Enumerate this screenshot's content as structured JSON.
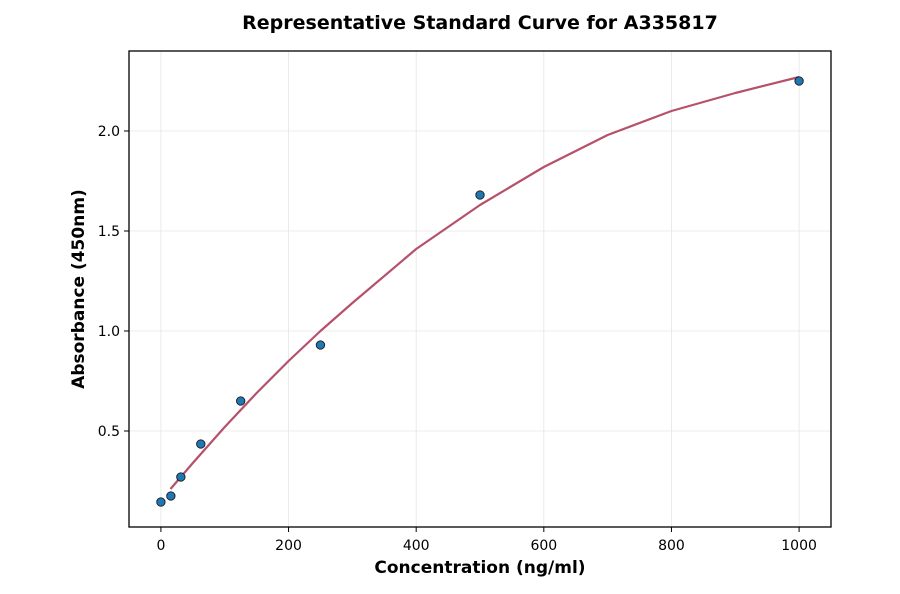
{
  "chart_data": {
    "type": "scatter",
    "title": "Representative Standard Curve for A335817",
    "xlabel": "Concentration (ng/ml)",
    "ylabel": "Absorbance (450nm)",
    "xlim": [
      -50,
      1050
    ],
    "ylim": [
      0.02,
      2.4
    ],
    "xticks": [
      0,
      200,
      400,
      600,
      800,
      1000
    ],
    "xtick_labels": [
      "0",
      "200",
      "400",
      "600",
      "800",
      "1000"
    ],
    "yticks": [
      0.5,
      1.0,
      1.5,
      2.0
    ],
    "ytick_labels": [
      "0.5",
      "1.0",
      "1.5",
      "2.0"
    ],
    "grid": true,
    "series": [
      {
        "type": "scatter",
        "color": "#1f77b4",
        "x": [
          0,
          15.6,
          31.25,
          62.5,
          125,
          250,
          500,
          1000
        ],
        "y": [
          0.145,
          0.175,
          0.27,
          0.435,
          0.65,
          0.93,
          1.68,
          2.25
        ]
      },
      {
        "type": "line",
        "color": "#b5516a",
        "x": [
          15,
          50,
          100,
          150,
          200,
          250,
          300,
          400,
          500,
          600,
          700,
          800,
          900,
          1000
        ],
        "y": [
          0.21,
          0.34,
          0.52,
          0.69,
          0.85,
          1.0,
          1.14,
          1.41,
          1.63,
          1.82,
          1.98,
          2.1,
          2.19,
          2.27
        ]
      }
    ]
  }
}
